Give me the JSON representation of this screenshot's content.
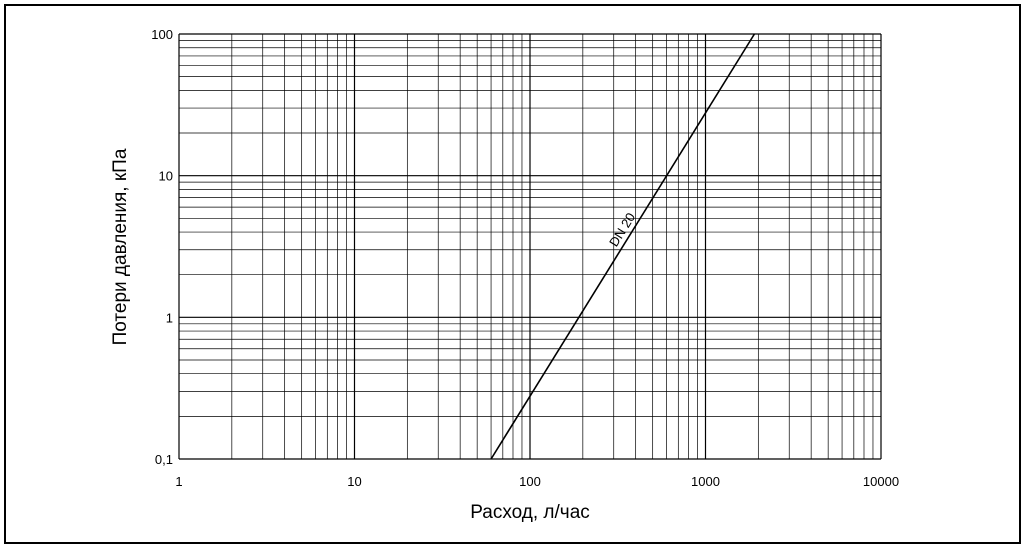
{
  "chart_data": {
    "type": "line",
    "title": "",
    "xlabel": "Расход, л/час",
    "ylabel": "Потери давления, кПа",
    "xscale": "log",
    "yscale": "log",
    "xlim": [
      1,
      10000
    ],
    "ylim": [
      0.1,
      100
    ],
    "x_ticks": [
      "1",
      "10",
      "100",
      "1000",
      "10000"
    ],
    "y_ticks": [
      "0,1",
      "1",
      "10",
      "100"
    ],
    "grid": true,
    "grid_minor": true,
    "series": [
      {
        "name": "DN 20",
        "x": [
          60,
          1900
        ],
        "y": [
          0.1,
          100
        ]
      }
    ],
    "colors": {
      "line": "#000000",
      "grid": "#000000",
      "background": "#ffffff"
    }
  }
}
